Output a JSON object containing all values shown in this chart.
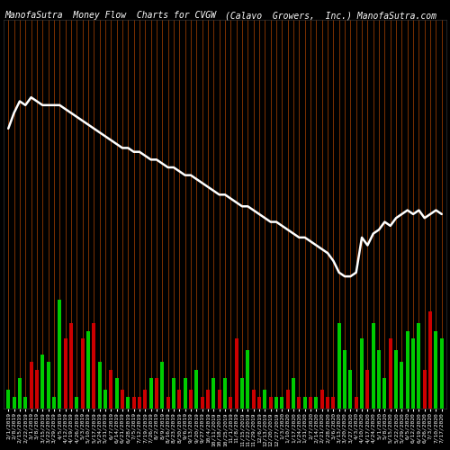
{
  "title_left": "ManofaSutra  Money Flow  Charts for CVGW",
  "title_right": "(Calavo  Growers,  Inc.) ManofaSutra.com",
  "background_color": "#000000",
  "line_color": "#ffffff",
  "line_width": 1.8,
  "vline_color": "#7B3000",
  "dates": [
    "2/1/2019",
    "2/8/2019",
    "2/15/2019",
    "2/22/2019",
    "3/1/2019",
    "3/8/2019",
    "3/15/2019",
    "3/22/2019",
    "3/29/2019",
    "4/5/2019",
    "4/12/2019",
    "4/19/2019",
    "4/26/2019",
    "5/3/2019",
    "5/10/2019",
    "5/17/2019",
    "5/24/2019",
    "5/31/2019",
    "6/7/2019",
    "6/14/2019",
    "6/21/2019",
    "6/28/2019",
    "7/5/2019",
    "7/12/2019",
    "7/19/2019",
    "7/26/2019",
    "8/2/2019",
    "8/9/2019",
    "8/16/2019",
    "8/23/2019",
    "8/30/2019",
    "9/6/2019",
    "9/13/2019",
    "9/20/2019",
    "9/27/2019",
    "10/4/2019",
    "10/11/2019",
    "10/18/2019",
    "10/25/2019",
    "11/1/2019",
    "11/8/2019",
    "11/15/2019",
    "11/22/2019",
    "11/29/2019",
    "12/6/2019",
    "12/13/2019",
    "12/20/2019",
    "12/27/2019",
    "1/3/2020",
    "1/10/2020",
    "1/17/2020",
    "1/24/2020",
    "1/31/2020",
    "2/7/2020",
    "2/14/2020",
    "2/21/2020",
    "2/28/2020",
    "3/6/2020",
    "3/13/2020",
    "3/20/2020",
    "3/27/2020",
    "4/3/2020",
    "4/10/2020",
    "4/17/2020",
    "4/24/2020",
    "5/1/2020",
    "5/8/2020",
    "5/15/2020",
    "5/22/2020",
    "5/29/2020",
    "6/5/2020",
    "6/12/2020",
    "6/19/2020",
    "6/26/2020",
    "7/3/2020",
    "7/10/2020",
    "7/17/2020"
  ],
  "bar_values": [
    5,
    3,
    8,
    3,
    12,
    10,
    14,
    12,
    3,
    28,
    18,
    22,
    3,
    18,
    20,
    22,
    12,
    5,
    10,
    8,
    5,
    3,
    3,
    3,
    5,
    8,
    8,
    12,
    3,
    8,
    5,
    8,
    5,
    10,
    3,
    5,
    8,
    5,
    8,
    3,
    18,
    8,
    15,
    5,
    3,
    5,
    3,
    3,
    3,
    5,
    8,
    3,
    3,
    3,
    3,
    5,
    3,
    3,
    22,
    15,
    10,
    3,
    18,
    10,
    22,
    15,
    8,
    18,
    15,
    12,
    20,
    18,
    22,
    10,
    25,
    20,
    18
  ],
  "bar_colors": [
    "green",
    "green",
    "green",
    "green",
    "red",
    "red",
    "green",
    "green",
    "green",
    "green",
    "red",
    "red",
    "green",
    "red",
    "green",
    "red",
    "green",
    "green",
    "red",
    "green",
    "red",
    "green",
    "red",
    "red",
    "red",
    "green",
    "red",
    "green",
    "red",
    "green",
    "red",
    "green",
    "red",
    "green",
    "red",
    "red",
    "green",
    "red",
    "green",
    "red",
    "red",
    "green",
    "green",
    "red",
    "red",
    "green",
    "red",
    "green",
    "green",
    "red",
    "green",
    "red",
    "green",
    "red",
    "green",
    "red",
    "red",
    "red",
    "green",
    "green",
    "green",
    "red",
    "green",
    "red",
    "green",
    "green",
    "green",
    "red",
    "green",
    "green",
    "green",
    "green",
    "green",
    "red",
    "red",
    "green",
    "green"
  ],
  "line_values": [
    72,
    76,
    79,
    78,
    80,
    79,
    78,
    78,
    78,
    78,
    77,
    76,
    75,
    74,
    73,
    72,
    71,
    70,
    69,
    68,
    67,
    67,
    66,
    66,
    65,
    64,
    64,
    63,
    62,
    62,
    61,
    60,
    60,
    59,
    58,
    57,
    56,
    55,
    55,
    54,
    53,
    52,
    52,
    51,
    50,
    49,
    48,
    48,
    47,
    46,
    45,
    44,
    44,
    43,
    42,
    41,
    40,
    38,
    35,
    34,
    34,
    35,
    44,
    42,
    45,
    46,
    48,
    47,
    49,
    50,
    51,
    50,
    51,
    49,
    50,
    51,
    50
  ],
  "ylim": [
    0,
    100
  ],
  "title_fontsize": 7,
  "tick_fontsize": 4.5
}
